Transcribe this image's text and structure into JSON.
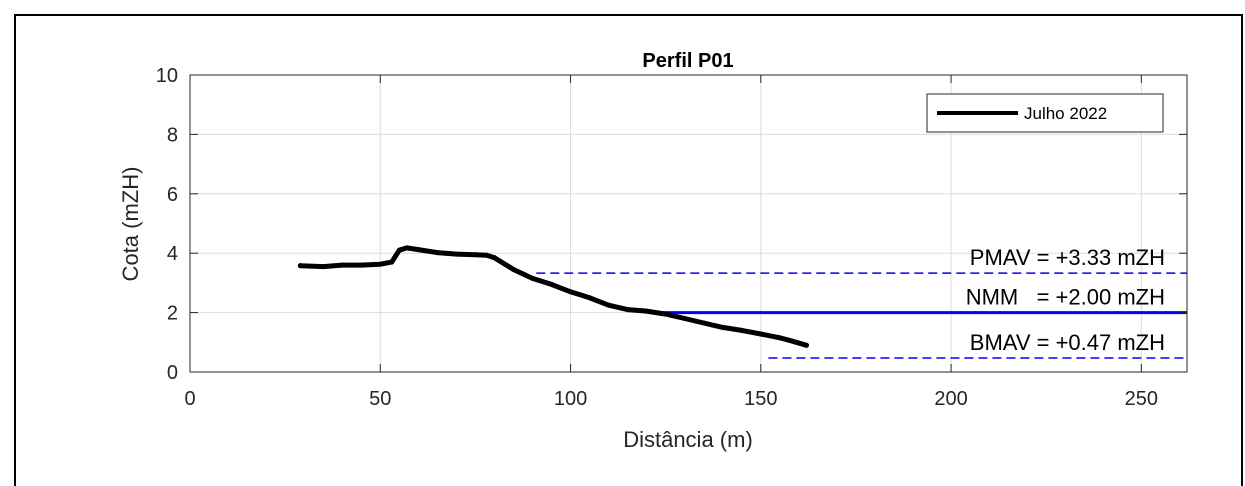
{
  "chart_data": {
    "type": "line",
    "title": "Perfil P01",
    "xlabel": "Distância (m)",
    "ylabel": "Cota (mZH)",
    "xlim": [
      0,
      262
    ],
    "ylim": [
      0,
      10
    ],
    "xticks": [
      0,
      50,
      100,
      150,
      200,
      250
    ],
    "yticks": [
      0,
      2,
      4,
      6,
      8,
      10
    ],
    "xtick_labels": [
      "0",
      "50",
      "100",
      "150",
      "200",
      "250"
    ],
    "ytick_labels": [
      "0",
      "2",
      "4",
      "6",
      "8",
      "10"
    ],
    "grid": true,
    "legend_position": "top-right",
    "series": [
      {
        "name": "Julho 2022",
        "color": "#000000",
        "x": [
          29,
          35,
          40,
          45,
          50,
          53,
          55,
          57,
          60,
          65,
          70,
          75,
          78,
          80,
          85,
          90,
          95,
          100,
          105,
          110,
          115,
          120,
          125,
          130,
          135,
          140,
          145,
          150,
          155,
          158,
          162
        ],
        "y": [
          3.58,
          3.55,
          3.6,
          3.6,
          3.63,
          3.7,
          4.1,
          4.18,
          4.12,
          4.02,
          3.97,
          3.95,
          3.93,
          3.85,
          3.45,
          3.15,
          2.95,
          2.7,
          2.5,
          2.25,
          2.1,
          2.05,
          1.95,
          1.8,
          1.65,
          1.5,
          1.4,
          1.28,
          1.15,
          1.05,
          0.9
        ]
      }
    ],
    "reference_lines": [
      {
        "label": "PMAV = +3.33 mZH",
        "y": 3.33,
        "x_start": 91,
        "style": "dashed",
        "color": "#0000ff"
      },
      {
        "label": "NMM   = +2.00 mZH",
        "y": 2.0,
        "x_start": 121,
        "style": "solid",
        "color": "#0000ff"
      },
      {
        "label": "BMAV = +0.47 mZH",
        "y": 0.47,
        "x_start": 152,
        "style": "dashed",
        "color": "#0000ff"
      }
    ]
  }
}
